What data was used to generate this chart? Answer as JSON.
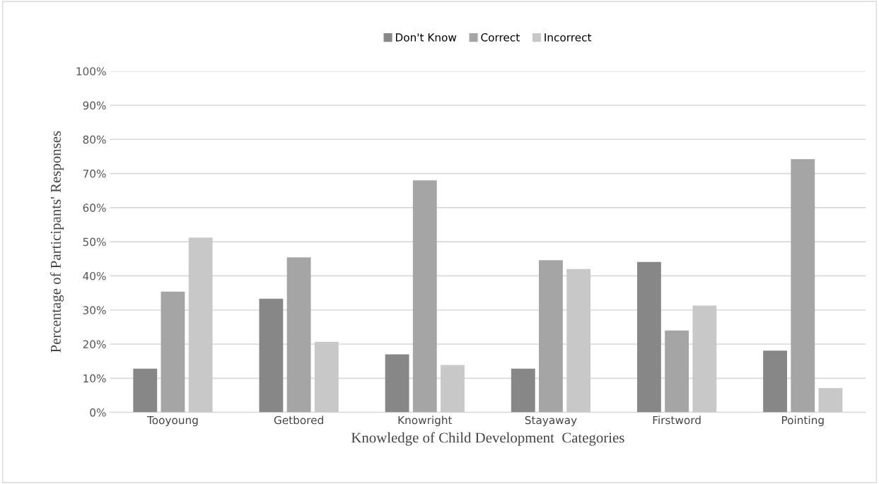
{
  "chart_data": {
    "type": "bar",
    "xlabel": "Knowledge of Child Development  Categories",
    "ylabel": "Percentage of Participants' Responses",
    "categories": [
      "Tooyoung",
      "Getbored",
      "Knowright",
      "Stayaway",
      "Firstword",
      "Pointing"
    ],
    "series": [
      {
        "name": "Don't Know",
        "color": "#878787",
        "values": [
          12.8,
          33.3,
          17.0,
          12.8,
          44.1,
          18.1
        ]
      },
      {
        "name": "Correct",
        "color": "#a5a5a5",
        "values": [
          35.4,
          45.4,
          68.0,
          44.6,
          24.0,
          74.2
        ]
      },
      {
        "name": "Incorrect",
        "color": "#c8c8c8",
        "values": [
          51.2,
          20.7,
          13.9,
          42.0,
          31.3,
          7.1
        ]
      }
    ],
    "ylim": [
      0,
      100
    ],
    "yticks": [
      {
        "value": 0,
        "label": "0%"
      },
      {
        "value": 10,
        "label": "10%"
      },
      {
        "value": 20,
        "label": "20%"
      },
      {
        "value": 30,
        "label": "30%"
      },
      {
        "value": 40,
        "label": "40%"
      },
      {
        "value": 50,
        "label": "50%"
      },
      {
        "value": 60,
        "label": "60%"
      },
      {
        "value": 70,
        "label": "70%"
      },
      {
        "value": 80,
        "label": "80%"
      },
      {
        "value": 90,
        "label": "90%"
      },
      {
        "value": 100,
        "label": "100%"
      }
    ],
    "grid": "y",
    "legend": "top"
  }
}
